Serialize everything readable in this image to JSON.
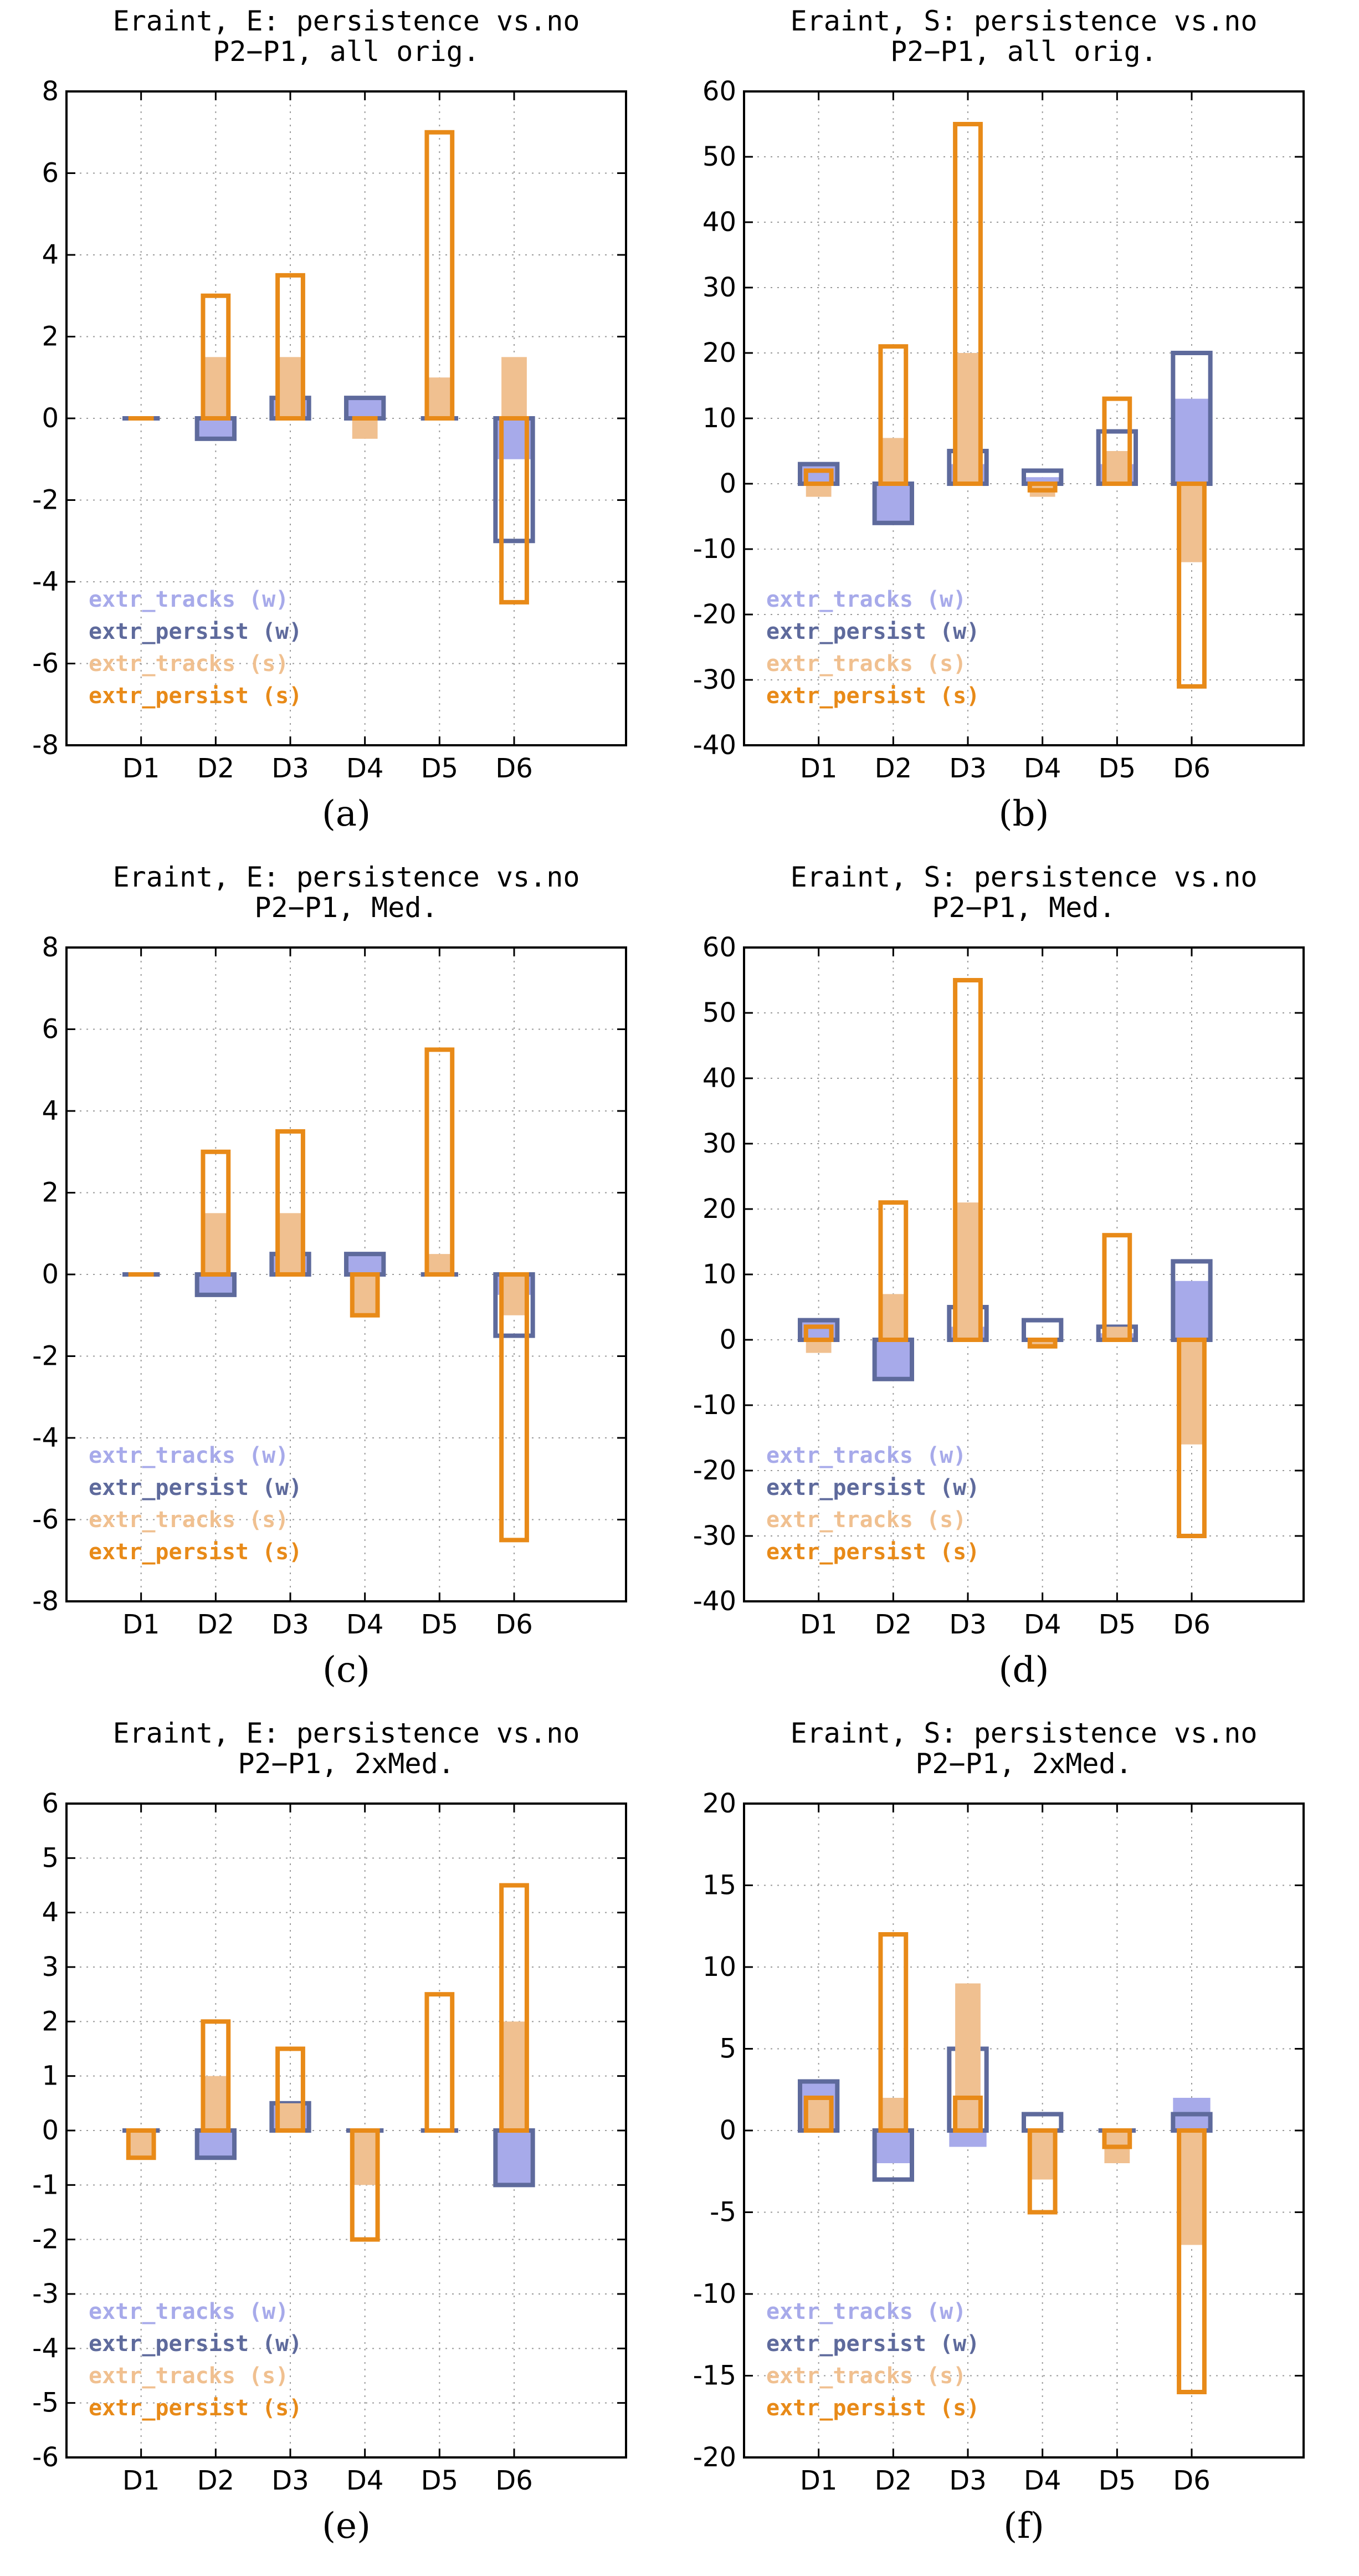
{
  "colors": {
    "tracks_w": "#a7aaea",
    "persist_w": "#5e6a9c",
    "tracks_s": "#f0c090",
    "persist_s": "#e88a18",
    "grid": "#9a9a9a",
    "axis": "#000000"
  },
  "legend": [
    {
      "label": "extr_tracks  (w)",
      "color_key": "tracks_w"
    },
    {
      "label": "extr_persist (w)",
      "color_key": "persist_w"
    },
    {
      "label": "extr_tracks  (s)",
      "color_key": "tracks_s"
    },
    {
      "label": "extr_persist (s)",
      "color_key": "persist_s"
    }
  ],
  "chart_data": [
    {
      "type": "bar",
      "caption": "(a)",
      "title_line1": "Eraint, E: persistence vs.no",
      "title_line2": "P2−P1, all orig.",
      "categories": [
        "D1",
        "D2",
        "D3",
        "D4",
        "D5",
        "D6"
      ],
      "ylim": [
        -8,
        8
      ],
      "yticks": [
        -8,
        -6,
        -4,
        -2,
        0,
        2,
        4,
        6,
        8
      ],
      "series": [
        {
          "name": "extr_tracks (w)",
          "values": [
            0,
            -0.5,
            0.5,
            0.5,
            0,
            -1
          ]
        },
        {
          "name": "extr_persist (w)",
          "values": [
            0,
            -0.5,
            0.5,
            0.5,
            0,
            -3
          ]
        },
        {
          "name": "extr_tracks (s)",
          "values": [
            0,
            1.5,
            1.5,
            -0.5,
            1,
            1.5
          ]
        },
        {
          "name": "extr_persist (s)",
          "values": [
            0,
            3,
            3.5,
            0,
            7,
            -4.5
          ]
        }
      ]
    },
    {
      "type": "bar",
      "caption": "(b)",
      "title_line1": "Eraint, S: persistence vs.no",
      "title_line2": "P2−P1, all orig.",
      "categories": [
        "D1",
        "D2",
        "D3",
        "D4",
        "D5",
        "D6"
      ],
      "ylim": [
        -40,
        60
      ],
      "yticks": [
        -40,
        -30,
        -20,
        -10,
        0,
        10,
        20,
        30,
        40,
        50,
        60
      ],
      "series": [
        {
          "name": "extr_tracks (w)",
          "values": [
            3,
            -6,
            3,
            1,
            3,
            13
          ]
        },
        {
          "name": "extr_persist (w)",
          "values": [
            3,
            -6,
            5,
            2,
            8,
            20
          ]
        },
        {
          "name": "extr_tracks (s)",
          "values": [
            -2,
            7,
            20,
            -2,
            5,
            -12
          ]
        },
        {
          "name": "extr_persist (s)",
          "values": [
            2,
            21,
            55,
            -1,
            13,
            -31
          ]
        }
      ]
    },
    {
      "type": "bar",
      "caption": "(c)",
      "title_line1": "Eraint, E: persistence vs.no",
      "title_line2": "P2−P1, Med.",
      "categories": [
        "D1",
        "D2",
        "D3",
        "D4",
        "D5",
        "D6"
      ],
      "ylim": [
        -8,
        8
      ],
      "yticks": [
        -8,
        -6,
        -4,
        -2,
        0,
        2,
        4,
        6,
        8
      ],
      "series": [
        {
          "name": "extr_tracks (w)",
          "values": [
            0,
            -0.5,
            0.5,
            0.5,
            0,
            -0.5
          ]
        },
        {
          "name": "extr_persist (w)",
          "values": [
            0,
            -0.5,
            0.5,
            0.5,
            0,
            -1.5
          ]
        },
        {
          "name": "extr_tracks (s)",
          "values": [
            0,
            1.5,
            1.5,
            -1,
            0.5,
            -1
          ]
        },
        {
          "name": "extr_persist (s)",
          "values": [
            0,
            3,
            3.5,
            -1,
            5.5,
            -6.5
          ]
        }
      ]
    },
    {
      "type": "bar",
      "caption": "(d)",
      "title_line1": "Eraint, S: persistence vs.no",
      "title_line2": "P2−P1, Med.",
      "categories": [
        "D1",
        "D2",
        "D3",
        "D4",
        "D5",
        "D6"
      ],
      "ylim": [
        -40,
        60
      ],
      "yticks": [
        -40,
        -30,
        -20,
        -10,
        0,
        10,
        20,
        30,
        40,
        50,
        60
      ],
      "series": [
        {
          "name": "extr_tracks (w)",
          "values": [
            3,
            -6,
            2,
            0,
            1,
            9
          ]
        },
        {
          "name": "extr_persist (w)",
          "values": [
            3,
            -6,
            5,
            3,
            2,
            12
          ]
        },
        {
          "name": "extr_tracks (s)",
          "values": [
            -2,
            7,
            21,
            -1,
            2,
            -16
          ]
        },
        {
          "name": "extr_persist (s)",
          "values": [
            2,
            21,
            55,
            -1,
            16,
            -30
          ]
        }
      ]
    },
    {
      "type": "bar",
      "caption": "(e)",
      "title_line1": "Eraint, E: persistence vs.no",
      "title_line2": "P2−P1, 2xMed.",
      "categories": [
        "D1",
        "D2",
        "D3",
        "D4",
        "D5",
        "D6"
      ],
      "ylim": [
        -6,
        6
      ],
      "yticks": [
        -6,
        -5,
        -4,
        -3,
        -2,
        -1,
        0,
        1,
        2,
        3,
        4,
        5,
        6
      ],
      "series": [
        {
          "name": "extr_tracks (w)",
          "values": [
            0,
            -0.5,
            0.5,
            0,
            0,
            -1
          ]
        },
        {
          "name": "extr_persist (w)",
          "values": [
            0,
            -0.5,
            0.5,
            0,
            0,
            -1
          ]
        },
        {
          "name": "extr_tracks (s)",
          "values": [
            -0.5,
            1,
            0.5,
            -1,
            0,
            2
          ]
        },
        {
          "name": "extr_persist (s)",
          "values": [
            -0.5,
            2,
            1.5,
            -2,
            2.5,
            4.5
          ]
        }
      ]
    },
    {
      "type": "bar",
      "caption": "(f)",
      "title_line1": "Eraint, S: persistence vs.no",
      "title_line2": "P2−P1, 2xMed.",
      "categories": [
        "D1",
        "D2",
        "D3",
        "D4",
        "D5",
        "D6"
      ],
      "ylim": [
        -20,
        20
      ],
      "yticks": [
        -20,
        -15,
        -10,
        -5,
        0,
        5,
        10,
        15,
        20
      ],
      "series": [
        {
          "name": "extr_tracks (w)",
          "values": [
            3,
            -2,
            -1,
            0,
            0,
            2
          ]
        },
        {
          "name": "extr_persist (w)",
          "values": [
            3,
            -3,
            5,
            1,
            0,
            1
          ]
        },
        {
          "name": "extr_tracks (s)",
          "values": [
            2,
            2,
            9,
            -3,
            -2,
            -7
          ]
        },
        {
          "name": "extr_persist (s)",
          "values": [
            2,
            12,
            2,
            -5,
            -1,
            -16
          ]
        }
      ]
    }
  ]
}
